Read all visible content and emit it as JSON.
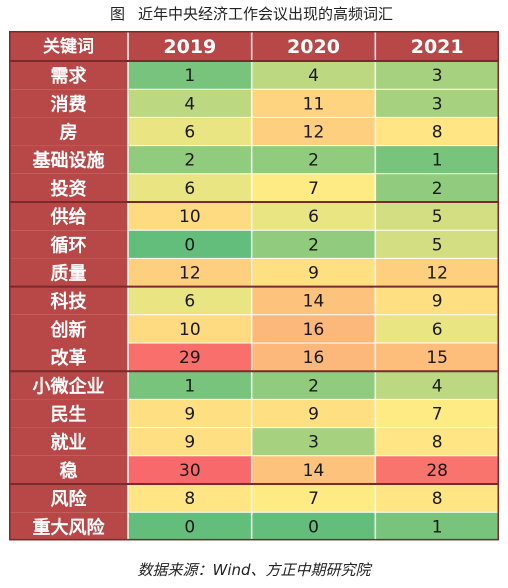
{
  "caption": {
    "figure_label": "图",
    "title": "近年中央经济工作会议出现的高频词汇"
  },
  "source": "数据来源：Wind、方正中期研究院",
  "colors": {
    "header_bg": "#b84848",
    "keyword_bg": "#b84848",
    "scale_low": "#63be7b",
    "scale_mid": "#ffeb84",
    "scale_high": "#f8696b",
    "grid": "#ffffff",
    "group_divider": "#7a2a2a"
  },
  "chart_data": {
    "type": "table",
    "title": "近年中央经济工作会议出现的高频词汇",
    "header": "关键词",
    "columns": [
      "2019",
      "2020",
      "2021"
    ],
    "rows": [
      {
        "keyword": "需求",
        "values": [
          1,
          4,
          3
        ]
      },
      {
        "keyword": "消费",
        "values": [
          4,
          11,
          3
        ]
      },
      {
        "keyword": "房",
        "values": [
          6,
          12,
          8
        ]
      },
      {
        "keyword": "基础设施",
        "values": [
          2,
          2,
          1
        ]
      },
      {
        "keyword": "投资",
        "values": [
          6,
          7,
          2
        ]
      },
      {
        "keyword": "供给",
        "values": [
          10,
          6,
          5
        ]
      },
      {
        "keyword": "循环",
        "values": [
          0,
          2,
          5
        ]
      },
      {
        "keyword": "质量",
        "values": [
          12,
          9,
          12
        ]
      },
      {
        "keyword": "科技",
        "values": [
          6,
          14,
          9
        ]
      },
      {
        "keyword": "创新",
        "values": [
          10,
          16,
          6
        ]
      },
      {
        "keyword": "改革",
        "values": [
          29,
          16,
          15
        ]
      },
      {
        "keyword": "小微企业",
        "values": [
          1,
          2,
          4
        ]
      },
      {
        "keyword": "民生",
        "values": [
          9,
          9,
          7
        ]
      },
      {
        "keyword": "就业",
        "values": [
          9,
          3,
          8
        ]
      },
      {
        "keyword": "稳",
        "values": [
          30,
          14,
          28
        ]
      },
      {
        "keyword": "风险",
        "values": [
          8,
          7,
          8
        ]
      },
      {
        "keyword": "重大风险",
        "values": [
          0,
          0,
          1
        ]
      }
    ],
    "group_ends": [
      4,
      7,
      10,
      14
    ]
  }
}
